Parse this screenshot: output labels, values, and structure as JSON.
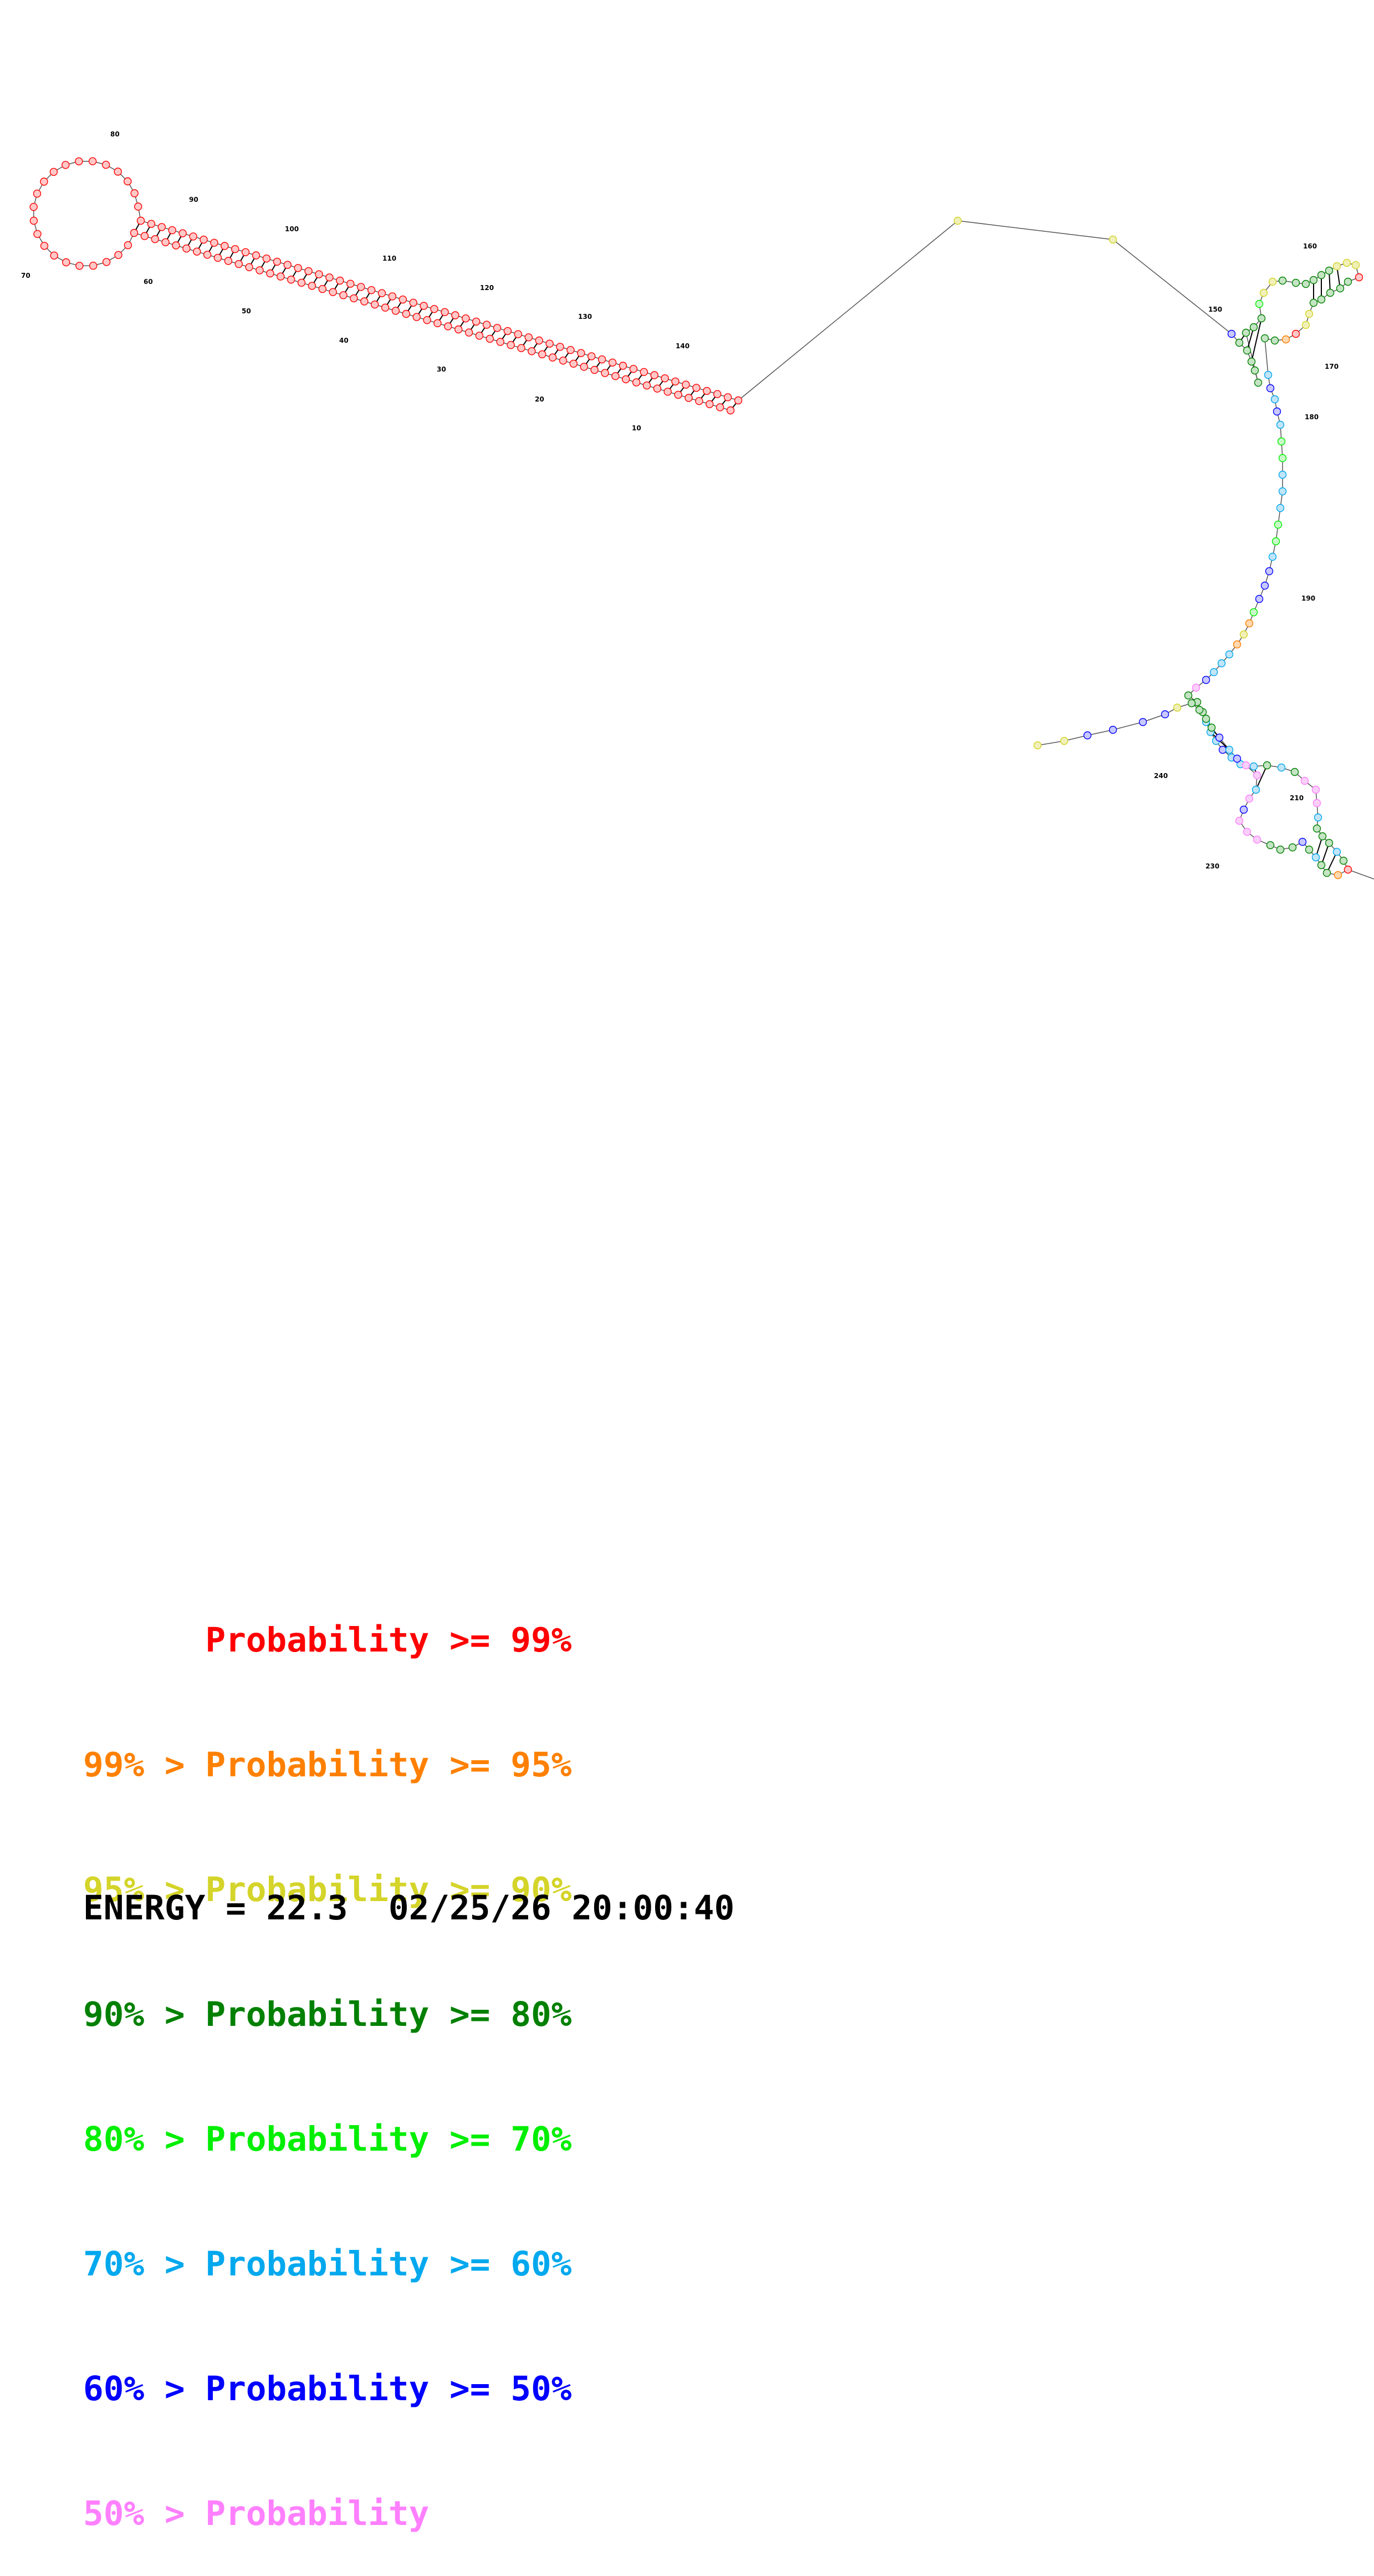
{
  "structure": {
    "ntp_clarify": "base-pair probability classes index into legend.bands",
    "position_labels": [
      "10",
      "20",
      "30",
      "40",
      "50",
      "60",
      "70",
      "80",
      "90",
      "100",
      "110",
      "120",
      "130",
      "140",
      "150",
      "160",
      "170",
      "180",
      "190",
      "210",
      "230",
      "240"
    ]
  },
  "legend": {
    "bands": [
      {
        "color": "#ff0000",
        "text": "      Probability >= 99%"
      },
      {
        "color": "#ff8000",
        "text": "99% > Probability >= 95%"
      },
      {
        "color": "#d4d42a",
        "text": "95% > Probability >= 90%"
      },
      {
        "color": "#008000",
        "text": "90% > Probability >= 80%"
      },
      {
        "color": "#00ee00",
        "text": "80% > Probability >= 70%"
      },
      {
        "color": "#00a8ee",
        "text": "70% > Probability >= 60%"
      },
      {
        "color": "#0000ff",
        "text": "60% > Probability >= 50%"
      },
      {
        "color": "#ff80ff",
        "text": "50% > Probability"
      }
    ]
  },
  "footer": {
    "energy_text": "ENERGY = 22.3  02/25/26 20:00:40"
  }
}
